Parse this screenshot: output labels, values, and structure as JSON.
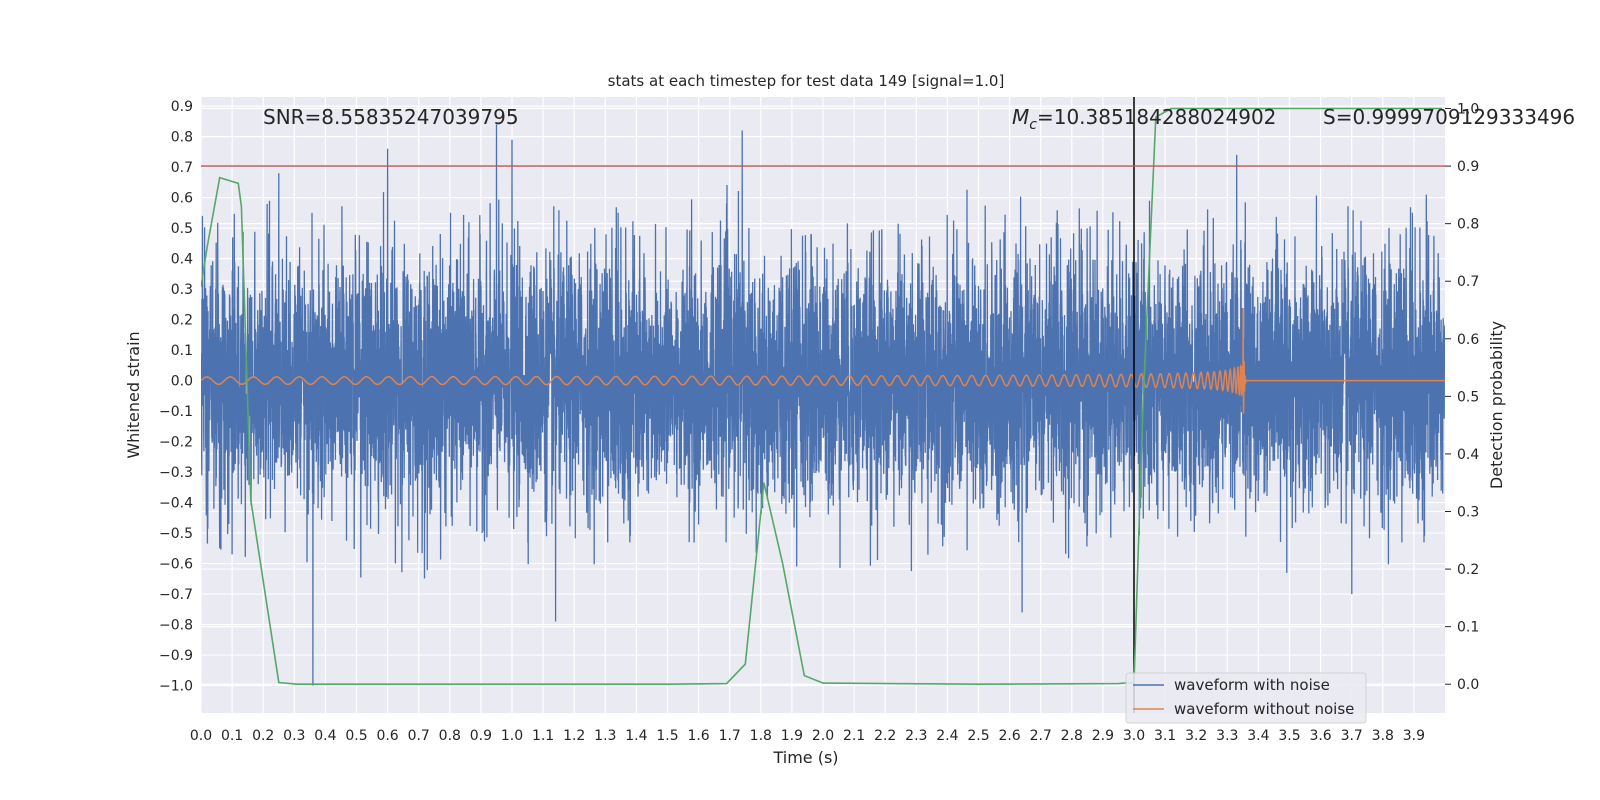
{
  "chart_data": {
    "type": "line",
    "title": "stats at each timestep for test data 149 [signal=1.0]",
    "xlabel": "Time (s)",
    "ylabel_left": "Whitened strain",
    "ylabel_right": "Detection probability",
    "xlim": [
      0.0,
      4.0
    ],
    "ylim_left": [
      -1.09,
      0.93
    ],
    "ylim_right": [
      -0.05,
      1.02
    ],
    "x_ticks": [
      "0.0",
      "0.1",
      "0.2",
      "0.3",
      "0.4",
      "0.5",
      "0.6",
      "0.7",
      "0.8",
      "0.9",
      "1.0",
      "1.1",
      "1.2",
      "1.3",
      "1.4",
      "1.5",
      "1.6",
      "1.7",
      "1.8",
      "1.9",
      "2.0",
      "2.1",
      "2.2",
      "2.3",
      "2.4",
      "2.5",
      "2.6",
      "2.7",
      "2.8",
      "2.9",
      "3.0",
      "3.1",
      "3.2",
      "3.3",
      "3.4",
      "3.5",
      "3.6",
      "3.7",
      "3.8",
      "3.9"
    ],
    "y_ticks_left": [
      "0.9",
      "0.8",
      "0.7",
      "0.6",
      "0.5",
      "0.4",
      "0.3",
      "0.2",
      "0.1",
      "0.0",
      "−0.1",
      "−0.2",
      "−0.3",
      "−0.4",
      "−0.5",
      "−0.6",
      "−0.7",
      "−0.8",
      "−0.9",
      "−1.0"
    ],
    "y_ticks_right": [
      "1.0",
      "0.9",
      "0.8",
      "0.7",
      "0.6",
      "0.5",
      "0.4",
      "0.3",
      "0.2",
      "0.1",
      "0.0"
    ],
    "annotations": {
      "snr": "SNR=8.55835247039795",
      "mc_symbol": "M",
      "mc_subscript": "c",
      "mc_value": "=10.385184288024902",
      "s": "S=0.9999709129333496"
    },
    "threshold": {
      "axis": "right",
      "value": 0.9,
      "color": "#c44e52"
    },
    "event_marker": {
      "x": 3.0,
      "color": "#000000"
    },
    "legend": {
      "placement": "lower-right",
      "entries": [
        {
          "name": "waveform with noise",
          "color": "#4c72b0"
        },
        {
          "name": "waveform without noise",
          "color": "#dd8452"
        }
      ]
    },
    "series": [
      {
        "name": "waveform with noise",
        "axis": "left",
        "color": "#4c72b0",
        "description_type": "noise",
        "params": {
          "seed": 149,
          "sigma": 0.2,
          "samples": 8192
        },
        "peaks": [
          [
            0.06,
            -0.55
          ],
          [
            0.1,
            -0.57
          ],
          [
            0.22,
            0.59
          ],
          [
            0.25,
            0.68
          ],
          [
            0.36,
            -1.0
          ],
          [
            0.6,
            0.76
          ],
          [
            0.95,
            0.84
          ],
          [
            1.0,
            0.79
          ],
          [
            1.14,
            -0.79
          ],
          [
            1.74,
            0.82
          ],
          [
            1.8,
            -0.37
          ],
          [
            2.64,
            -0.76
          ],
          [
            3.05,
            0.59
          ],
          [
            3.33,
            0.74
          ],
          [
            3.7,
            -0.7
          ],
          [
            3.94,
            0.61
          ]
        ]
      },
      {
        "name": "waveform without noise",
        "axis": "left",
        "color": "#dd8452",
        "description_type": "chirp",
        "params": {
          "t_merge": 3.35,
          "f_start": 10,
          "amp_start": 0.012,
          "amp_peak": 0.32,
          "ringdown_end": 3.36
        }
      },
      {
        "name": "detection probability",
        "axis": "right",
        "color": "#55a868",
        "x": [
          0.0,
          0.02,
          0.06,
          0.12,
          0.13,
          0.16,
          0.25,
          0.31,
          0.37,
          0.5,
          1.0,
          1.5,
          1.69,
          1.75,
          1.81,
          1.87,
          1.94,
          2.0,
          2.5,
          2.95,
          3.0,
          3.03,
          3.07,
          3.12,
          3.5,
          3.99
        ],
        "values": [
          0.69,
          0.76,
          0.88,
          0.87,
          0.83,
          0.32,
          0.003,
          0.0,
          0.0,
          0.0,
          0.0,
          0.0,
          0.001,
          0.035,
          0.35,
          0.21,
          0.015,
          0.002,
          0.0,
          0.001,
          0.003,
          0.5,
          0.985,
          1.0,
          1.0,
          1.0
        ]
      }
    ]
  }
}
